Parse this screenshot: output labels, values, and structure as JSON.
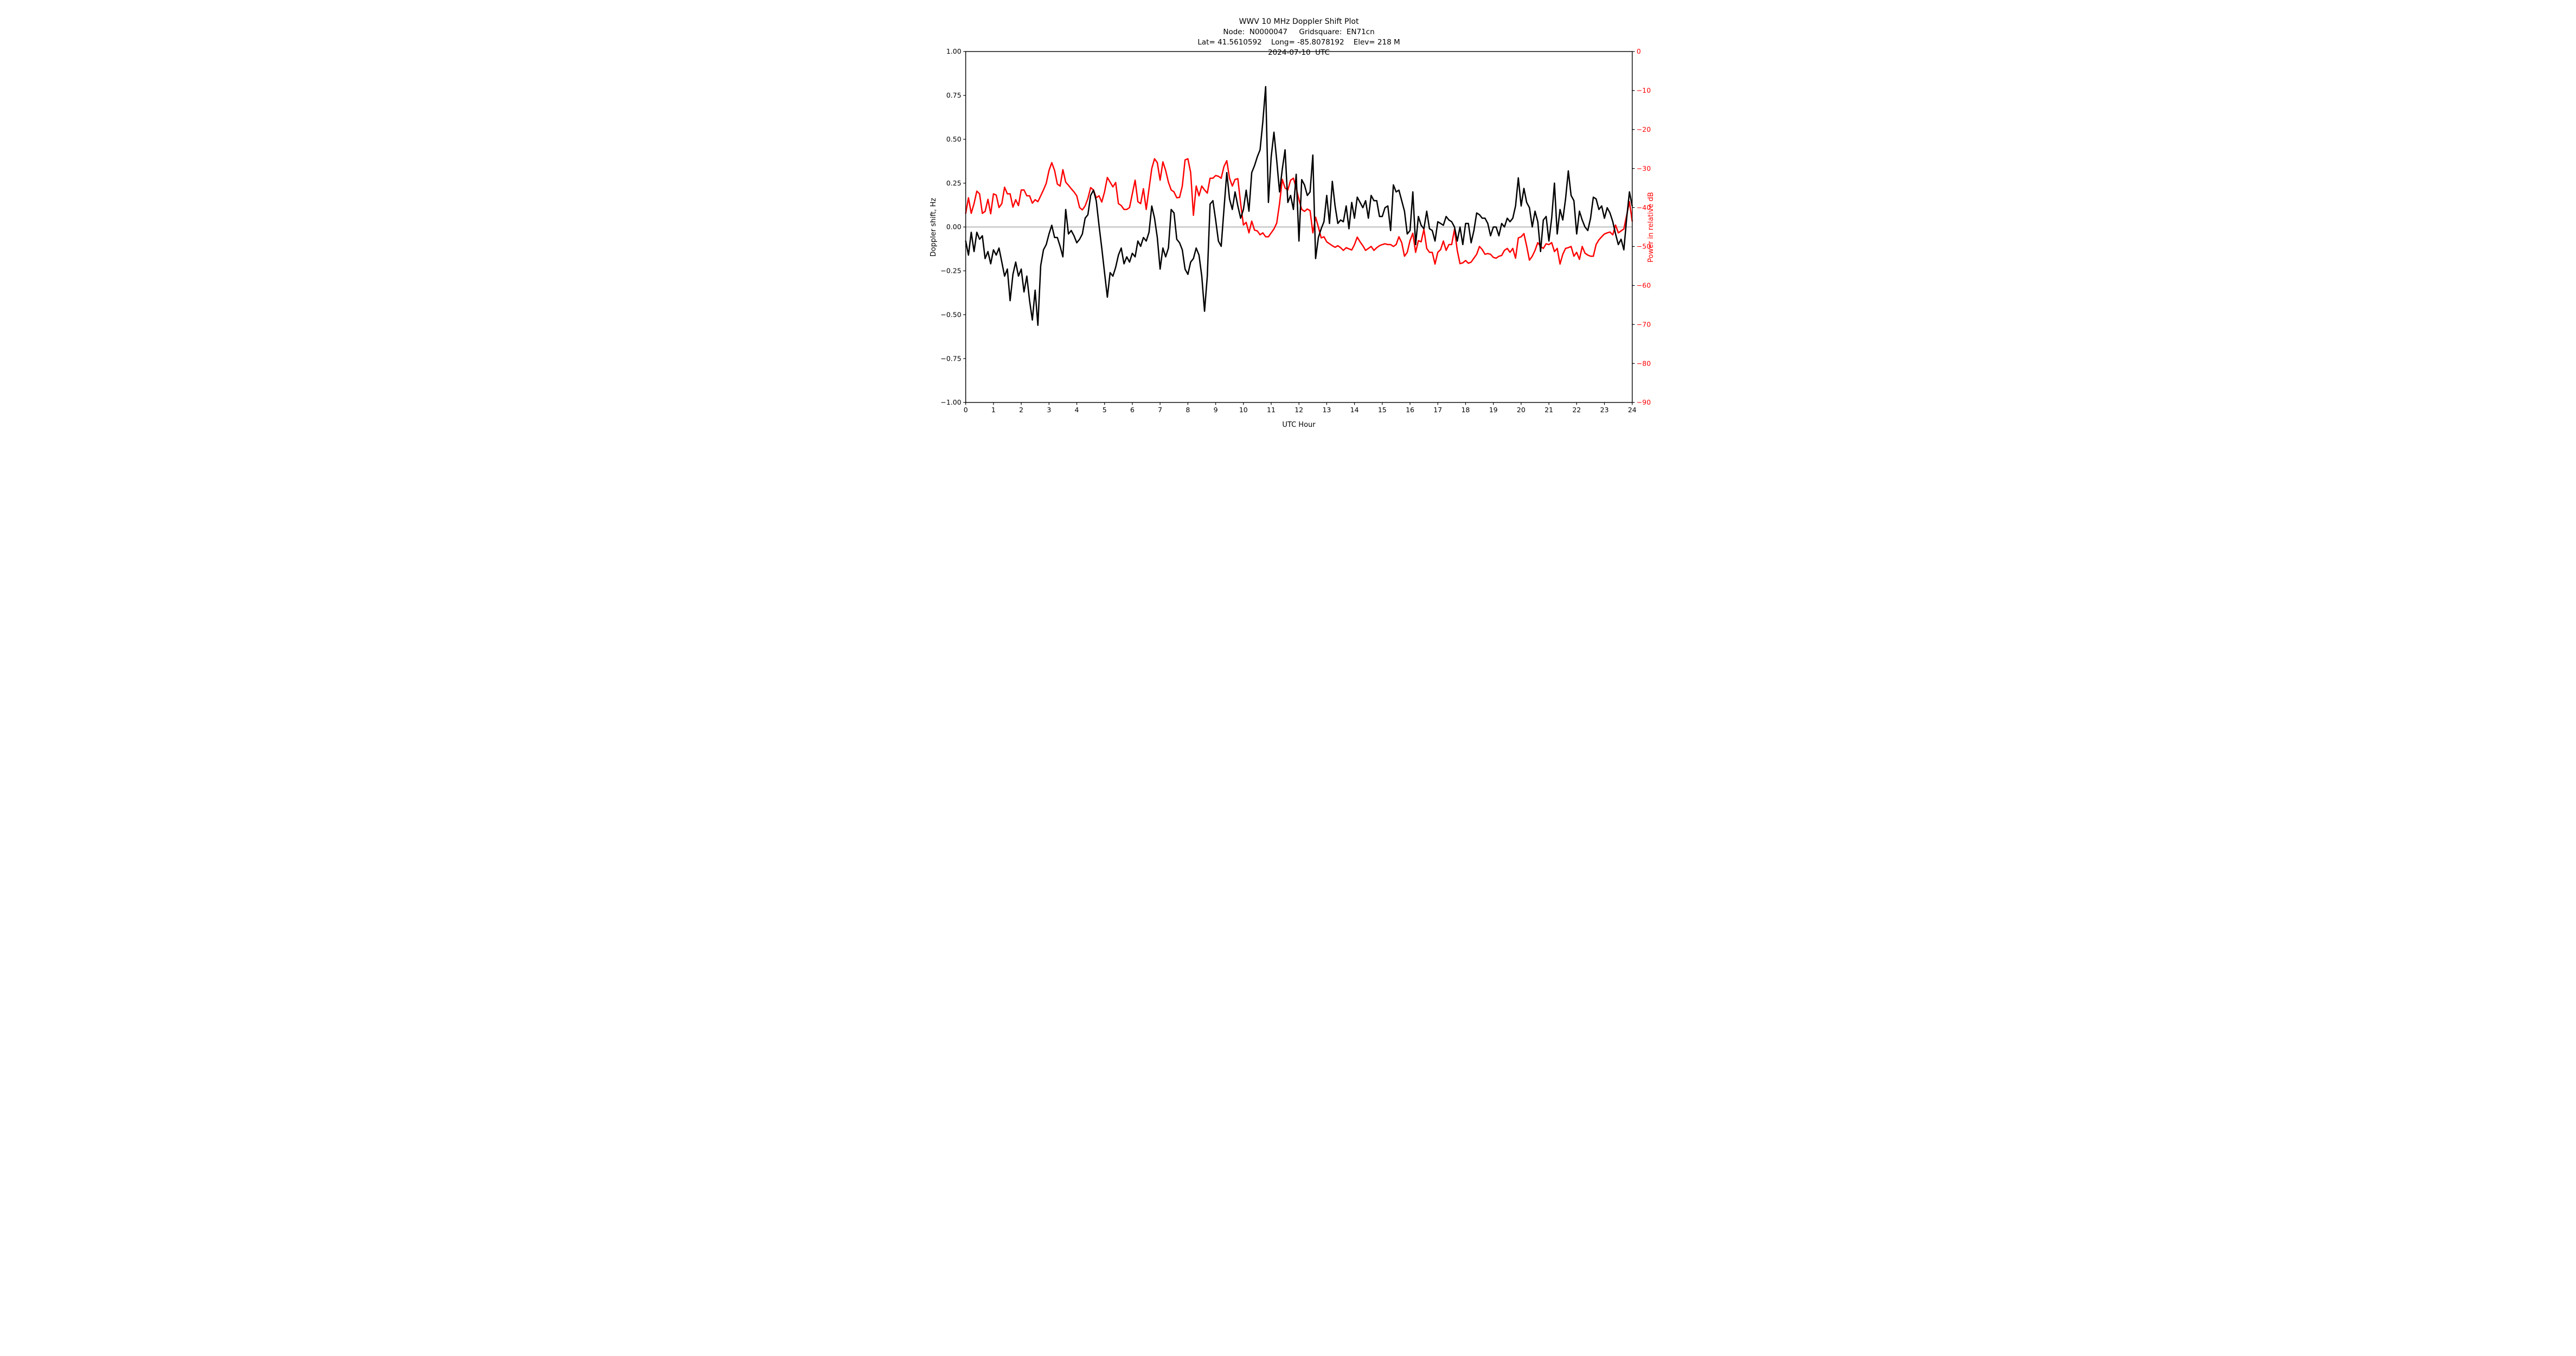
{
  "header": {
    "title": "WWV 10 MHz Doppler Shift Plot",
    "node_line": "Node:  N0000047     Gridsquare:  EN71cn",
    "location_line": "Lat= 41.5610592    Long= -85.8078192    Elev= 218 M",
    "date_line": "2024-07-10  UTC"
  },
  "colors": {
    "doppler": "#000000",
    "power": "#ff0000",
    "zero_line": "#808080",
    "frame": "#000000",
    "background": "#ffffff"
  },
  "chart_data": {
    "type": "line",
    "title": "WWV 10 MHz Doppler Shift Plot",
    "xlabel": "UTC Hour",
    "grid": false,
    "legend": "none",
    "x_axis": {
      "min": 0,
      "max": 24,
      "ticks": [
        0,
        1,
        2,
        3,
        4,
        5,
        6,
        7,
        8,
        9,
        10,
        11,
        12,
        13,
        14,
        15,
        16,
        17,
        18,
        19,
        20,
        21,
        22,
        23,
        24
      ]
    },
    "y_left": {
      "label": "Doppler shift, Hz",
      "min": -1.0,
      "max": 1.0,
      "ticks": [
        1.0,
        0.75,
        0.5,
        0.25,
        0.0,
        -0.25,
        -0.5,
        -0.75,
        -1.0
      ],
      "color": "#000000"
    },
    "y_right": {
      "label": "Power in relative dB",
      "min": -90,
      "max": 0,
      "ticks": [
        0,
        -10,
        -20,
        -30,
        -40,
        -50,
        -60,
        -70,
        -80,
        -90
      ],
      "color": "#ff0000"
    },
    "zero_line_hz": 0.0,
    "series": [
      {
        "name": "doppler-shift-hz",
        "axis": "left",
        "color": "#000000",
        "x_start": 0.0,
        "x_step": 0.1,
        "values": [
          -0.08,
          -0.16,
          -0.03,
          -0.14,
          -0.03,
          -0.07,
          -0.05,
          -0.18,
          -0.14,
          -0.21,
          -0.13,
          -0.16,
          -0.12,
          -0.2,
          -0.28,
          -0.24,
          -0.42,
          -0.27,
          -0.2,
          -0.28,
          -0.24,
          -0.37,
          -0.28,
          -0.42,
          -0.53,
          -0.36,
          -0.56,
          -0.22,
          -0.13,
          -0.1,
          -0.04,
          0.01,
          -0.06,
          -0.06,
          -0.11,
          -0.17,
          0.1,
          -0.04,
          -0.02,
          -0.05,
          -0.09,
          -0.07,
          -0.04,
          0.05,
          0.07,
          0.18,
          0.21,
          0.15,
          0.01,
          -0.12,
          -0.26,
          -0.4,
          -0.26,
          -0.28,
          -0.23,
          -0.16,
          -0.12,
          -0.21,
          -0.17,
          -0.2,
          -0.15,
          -0.17,
          -0.08,
          -0.11,
          -0.06,
          -0.08,
          -0.03,
          0.12,
          0.05,
          -0.06,
          -0.24,
          -0.12,
          -0.17,
          -0.12,
          0.1,
          0.08,
          -0.07,
          -0.09,
          -0.13,
          -0.24,
          -0.27,
          -0.2,
          -0.18,
          -0.12,
          -0.16,
          -0.28,
          -0.48,
          -0.28,
          0.13,
          0.15,
          0.04,
          -0.08,
          -0.11,
          0.1,
          0.31,
          0.16,
          0.1,
          0.2,
          0.12,
          0.05,
          0.1,
          0.21,
          0.09,
          0.31,
          0.35,
          0.4,
          0.44,
          0.6,
          0.8,
          0.14,
          0.4,
          0.54,
          0.38,
          0.2,
          0.33,
          0.44,
          0.14,
          0.18,
          0.1,
          0.3,
          -0.08,
          0.27,
          0.24,
          0.18,
          0.2,
          0.41,
          -0.18,
          -0.06,
          -0.01,
          0.03,
          0.18,
          0.02,
          0.26,
          0.12,
          0.02,
          0.04,
          0.03,
          0.12,
          -0.01,
          0.14,
          0.05,
          0.17,
          0.14,
          0.11,
          0.15,
          0.05,
          0.18,
          0.15,
          0.15,
          0.06,
          0.06,
          0.11,
          0.12,
          -0.02,
          0.24,
          0.2,
          0.21,
          0.15,
          0.09,
          -0.04,
          -0.02,
          0.2,
          -0.1,
          0.06,
          0.01,
          -0.01,
          0.09,
          -0.01,
          -0.02,
          -0.08,
          0.03,
          0.02,
          0.01,
          0.06,
          0.04,
          0.03,
          0.0,
          -0.08,
          0.0,
          -0.1,
          0.02,
          0.02,
          -0.09,
          -0.02,
          0.08,
          0.07,
          0.05,
          0.05,
          0.02,
          -0.05,
          0.0,
          0.0,
          -0.05,
          0.02,
          0.0,
          0.05,
          0.03,
          0.05,
          0.12,
          0.28,
          0.12,
          0.22,
          0.14,
          0.11,
          0.0,
          0.09,
          0.03,
          -0.14,
          0.04,
          0.06,
          -0.08,
          0.05,
          0.25,
          -0.04,
          0.1,
          0.04,
          0.16,
          0.32,
          0.18,
          0.15,
          -0.04,
          0.09,
          0.04,
          0.0,
          -0.02,
          0.05,
          0.17,
          0.16,
          0.1,
          0.12,
          0.05,
          0.11,
          0.08,
          0.03,
          -0.04,
          -0.1,
          -0.07,
          -0.13,
          0.05,
          0.2,
          0.12
        ]
      },
      {
        "name": "power-relative-db",
        "axis": "right",
        "color": "#ff0000",
        "x_start": 0.0,
        "x_step": 0.1,
        "values": [
          -41.5,
          -37.5,
          -41.5,
          -39.0,
          -35.8,
          -36.5,
          -41.5,
          -41.0,
          -37.9,
          -41.6,
          -36.5,
          -36.8,
          -40.0,
          -39.0,
          -34.8,
          -36.5,
          -36.5,
          -39.9,
          -38.0,
          -39.5,
          -35.5,
          -35.5,
          -37.0,
          -37.0,
          -38.9,
          -38.0,
          -38.5,
          -37.0,
          -35.5,
          -33.8,
          -30.5,
          -28.5,
          -30.5,
          -34.0,
          -34.5,
          -30.3,
          -33.5,
          -34.3,
          -35.2,
          -36.0,
          -37.0,
          -40.0,
          -40.6,
          -39.6,
          -37.7,
          -34.9,
          -35.5,
          -37.5,
          -37.0,
          -38.6,
          -36.0,
          -32.3,
          -33.5,
          -34.7,
          -33.6,
          -39.0,
          -39.5,
          -40.5,
          -40.5,
          -40.0,
          -36.5,
          -33.0,
          -38.5,
          -39.0,
          -35.2,
          -40.5,
          -35.2,
          -30.0,
          -27.5,
          -28.5,
          -33.0,
          -28.3,
          -30.5,
          -33.5,
          -35.5,
          -36.0,
          -37.5,
          -37.4,
          -34.5,
          -27.8,
          -27.5,
          -31.0,
          -42.0,
          -34.5,
          -37.0,
          -34.5,
          -35.5,
          -36.3,
          -32.5,
          -32.5,
          -31.8,
          -32.0,
          -32.5,
          -29.5,
          -28.0,
          -32.5,
          -34.5,
          -32.8,
          -32.6,
          -39.0,
          -44.5,
          -43.8,
          -46.5,
          -43.5,
          -45.8,
          -46.0,
          -47.0,
          -46.5,
          -47.5,
          -47.5,
          -46.5,
          -45.5,
          -44.0,
          -39.0,
          -32.8,
          -35.0,
          -35.5,
          -33.0,
          -32.5,
          -35.0,
          -38.0,
          -40.5,
          -41.0,
          -40.4,
          -40.8,
          -46.5,
          -42.5,
          -45.0,
          -47.8,
          -47.5,
          -48.8,
          -49.3,
          -49.8,
          -50.2,
          -49.8,
          -50.3,
          -51.0,
          -50.3,
          -50.6,
          -50.9,
          -49.5,
          -47.6,
          -48.8,
          -49.8,
          -51.0,
          -50.5,
          -50.0,
          -51.0,
          -50.3,
          -49.8,
          -49.5,
          -49.3,
          -49.5,
          -49.5,
          -50.0,
          -49.5,
          -47.5,
          -49.0,
          -52.5,
          -51.5,
          -48.5,
          -46.6,
          -51.5,
          -48.5,
          -48.8,
          -45.6,
          -50.5,
          -51.5,
          -51.5,
          -54.5,
          -51.5,
          -50.8,
          -48.6,
          -51.0,
          -49.5,
          -49.5,
          -45.6,
          -51.0,
          -54.4,
          -54.2,
          -53.6,
          -54.3,
          -54.0,
          -53.0,
          -52.0,
          -50.0,
          -50.8,
          -52.0,
          -51.8,
          -52.0,
          -52.8,
          -53.0,
          -52.5,
          -52.3,
          -51.0,
          -50.5,
          -51.5,
          -50.5,
          -53.0,
          -47.8,
          -47.5,
          -46.7,
          -49.9,
          -53.5,
          -52.5,
          -51.0,
          -49.0,
          -50.0,
          -50.5,
          -49.3,
          -49.5,
          -49.0,
          -51.3,
          -50.5,
          -54.5,
          -52.0,
          -50.5,
          -50.3,
          -50.0,
          -52.5,
          -51.5,
          -53.3,
          -50.0,
          -51.7,
          -52.2,
          -52.5,
          -52.5,
          -49.5,
          -48.3,
          -47.5,
          -46.8,
          -46.5,
          -46.3,
          -47.0,
          -44.5,
          -46.5,
          -46.0,
          -45.5,
          -42.0,
          -38.5,
          -43.5
        ]
      }
    ]
  }
}
